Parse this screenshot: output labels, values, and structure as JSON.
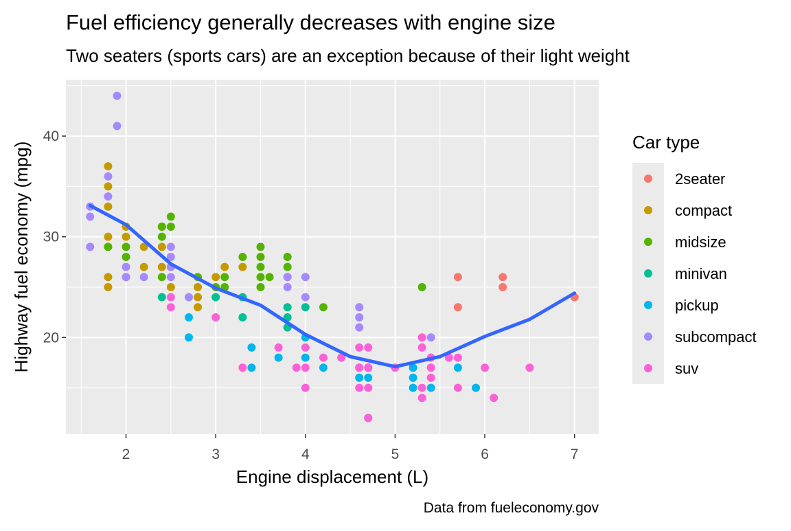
{
  "chart_data": {
    "type": "scatter",
    "title": "Fuel efficiency generally decreases with engine size",
    "subtitle": "Two seaters (sports cars) are an exception because of their light weight",
    "caption": "Data from fueleconomy.gov",
    "x_label": "Engine displacement (L)",
    "y_label": "Highway fuel economy (mpg)",
    "legend_title": "Car type",
    "legend_position": "right",
    "grid": true,
    "xlim": [
      1.33,
      7.27
    ],
    "ylim": [
      10.4,
      45.6
    ],
    "xticks": [
      2,
      3,
      4,
      5,
      6,
      7
    ],
    "yticks": [
      20,
      30,
      40
    ],
    "series": [
      {
        "name": "2seater",
        "color": "#F8766D",
        "x": [
          5.7,
          5.7,
          6.2,
          6.2,
          7
        ],
        "y": [
          26,
          23,
          26,
          25,
          24
        ]
      },
      {
        "name": "compact",
        "color": "#C49A00",
        "x": [
          1.8,
          1.8,
          1.8,
          1.8,
          1.8,
          1.8,
          1.8,
          2,
          2,
          2,
          2.2,
          2.2,
          2.4,
          2.4,
          2.4,
          2.5,
          2.5,
          2.8,
          2.8,
          2.8,
          3,
          3.1,
          3.3
        ],
        "y": [
          37,
          35,
          33,
          30,
          29,
          26,
          25,
          31,
          30,
          26,
          29,
          27,
          31,
          29,
          27,
          27,
          25,
          25,
          24,
          23,
          26,
          27,
          27
        ]
      },
      {
        "name": "midsize",
        "color": "#53B400",
        "x": [
          1.8,
          2,
          2,
          2.4,
          2.4,
          2.4,
          2.5,
          2.5,
          2.8,
          3,
          3.1,
          3.1,
          3.3,
          3.5,
          3.5,
          3.5,
          3.5,
          3.5,
          3.6,
          3.8,
          3.8,
          3.8,
          4.2,
          5.3
        ],
        "y": [
          29,
          29,
          28,
          31,
          30,
          26,
          32,
          31,
          26,
          25,
          26,
          25,
          28,
          29,
          28,
          27,
          26,
          25,
          26,
          28,
          27,
          26,
          23,
          25
        ]
      },
      {
        "name": "minivan",
        "color": "#00C094",
        "x": [
          2.4,
          3,
          3.3,
          3.3,
          3.8,
          3.8,
          3.8,
          4
        ],
        "y": [
          24,
          24,
          24,
          22,
          23,
          22,
          21,
          23
        ]
      },
      {
        "name": "pickup",
        "color": "#00B6EB",
        "x": [
          2.7,
          2.7,
          3.4,
          3.4,
          3.7,
          4,
          4,
          4.2,
          4.6,
          4.6,
          4.7,
          4.7,
          4.7,
          5.2,
          5.2,
          5.2,
          5.4,
          5.7,
          5.9
        ],
        "y": [
          22,
          20,
          19,
          17,
          18,
          20,
          18,
          17,
          17,
          16,
          17,
          16,
          12,
          17,
          16,
          15,
          15,
          17,
          15
        ]
      },
      {
        "name": "subcompact",
        "color": "#A58AFF",
        "x": [
          1.6,
          1.6,
          1.6,
          1.8,
          1.8,
          1.9,
          1.9,
          2,
          2,
          2.2,
          2.5,
          2.5,
          2.5,
          2.5,
          2.7,
          3.8,
          3.8,
          4,
          4,
          4.6,
          4.6,
          4.6,
          5.4
        ],
        "y": [
          33,
          32,
          29,
          36,
          34,
          44,
          41,
          27,
          26,
          26,
          29,
          28,
          27,
          26,
          24,
          26,
          25,
          26,
          24,
          23,
          22,
          21,
          20
        ]
      },
      {
        "name": "suv",
        "color": "#FB61D7",
        "x": [
          2.5,
          2.5,
          3,
          3.3,
          3.7,
          3.9,
          4,
          4,
          4,
          4.2,
          4.4,
          4.6,
          4.6,
          4.6,
          4.7,
          4.7,
          4.7,
          4.7,
          5,
          5.3,
          5.3,
          5.3,
          5.3,
          5.4,
          5.4,
          5.4,
          5.6,
          5.7,
          5.7,
          6,
          6.1,
          6.5
        ],
        "y": [
          24,
          23,
          22,
          17,
          19,
          17,
          19,
          17,
          15,
          18,
          18,
          19,
          17,
          15,
          19,
          17,
          15,
          12,
          17,
          20,
          19,
          15,
          14,
          18,
          17,
          16,
          18,
          18,
          15,
          17,
          14,
          17
        ]
      }
    ],
    "smooth": {
      "color": "#3366FF",
      "x": [
        1.6,
        2,
        2.5,
        3,
        3.5,
        4,
        4.5,
        5,
        5.5,
        6,
        6.5,
        7
      ],
      "y": [
        33.1,
        31.2,
        27.3,
        24.9,
        23.2,
        20.3,
        18.1,
        17.1,
        18.1,
        20.1,
        21.8,
        24.4
      ]
    }
  }
}
